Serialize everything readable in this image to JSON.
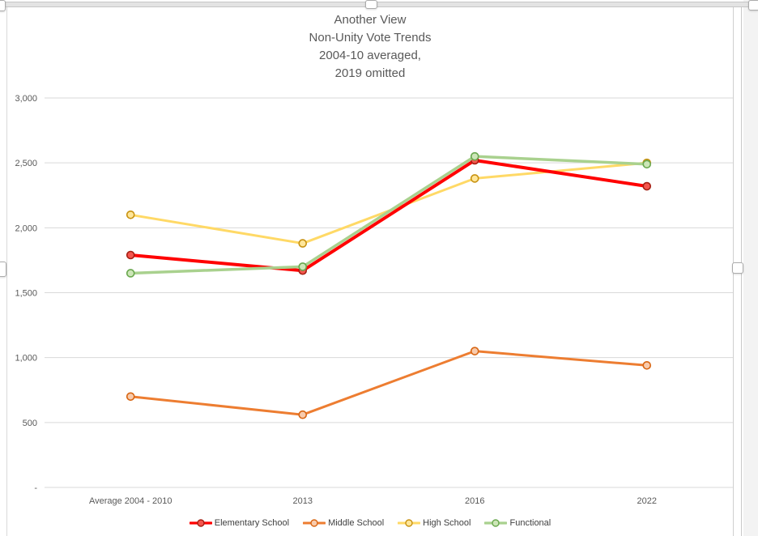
{
  "window": {
    "right_gutter_color": "#f3f3f3",
    "selection_frame_color": "#c6c6c6"
  },
  "chart_data": {
    "type": "line",
    "title": "Another View Non-Unity Vote Trends 2004-10 averaged, 2019 omitted",
    "title_lines": [
      "Another View",
      "Non-Unity Vote Trends",
      "2004-10 averaged,",
      "2019 omitted"
    ],
    "xlabel": "",
    "ylabel": "",
    "categories": [
      "Average 2004 - 2010",
      "2013",
      "2016",
      "2022"
    ],
    "series": [
      {
        "name": "Elementary School",
        "values": [
          1790,
          1670,
          2520,
          2320
        ],
        "color": "#ff0000",
        "marker_fill": "#f4564e",
        "marker_stroke": "#a52014",
        "line_width": 4
      },
      {
        "name": "Middle School",
        "values": [
          700,
          560,
          1050,
          940
        ],
        "color": "#ed7d31",
        "marker_fill": "#f8cbad",
        "marker_stroke": "#d86613",
        "line_width": 3
      },
      {
        "name": "High School",
        "values": [
          2100,
          1880,
          2380,
          2500
        ],
        "color": "#ffd966",
        "marker_fill": "#ffe699",
        "marker_stroke": "#c89211",
        "line_width": 3
      },
      {
        "name": "Functional",
        "values": [
          1650,
          1700,
          2550,
          2490
        ],
        "color": "#a9d18e",
        "marker_fill": "#cde6b8",
        "marker_stroke": "#6aa84f",
        "line_width": 3.5
      }
    ],
    "y_ticks": {
      "values": [
        0,
        500,
        1000,
        1500,
        2000,
        2500,
        3000
      ],
      "labels": [
        "-",
        "500",
        "1,000",
        "1,500",
        "2,000",
        "2,500",
        "3,000"
      ]
    },
    "ylim": [
      0,
      3000
    ],
    "grid": true,
    "gridline_color": "#d9d9d9",
    "axis_text_color": "#595959",
    "legend_position": "bottom"
  }
}
